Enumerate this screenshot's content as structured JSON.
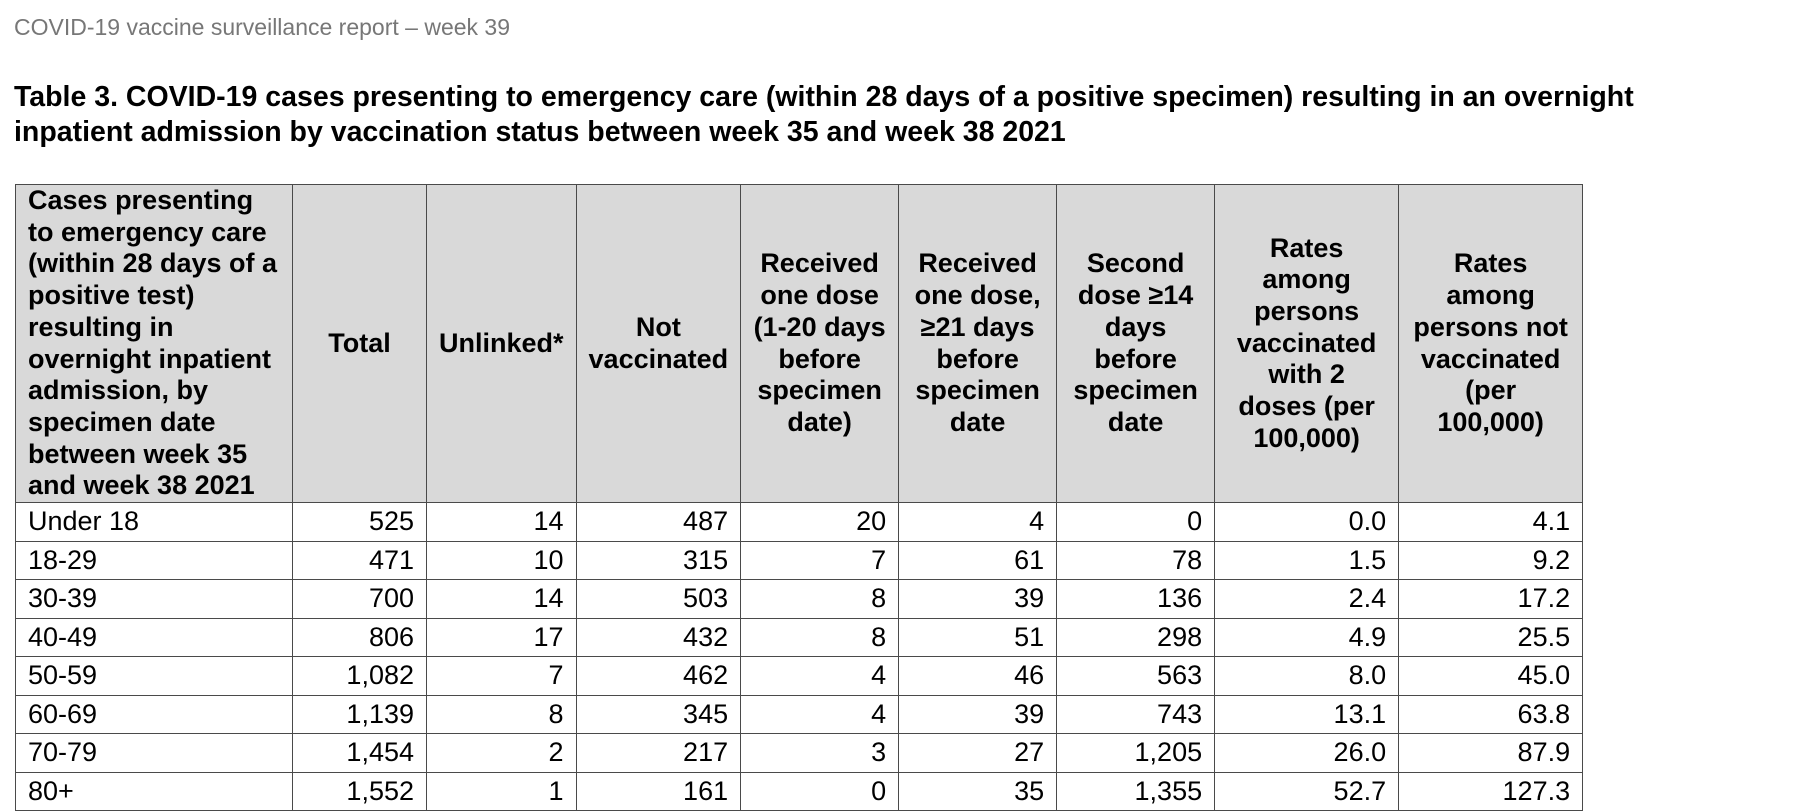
{
  "header": {
    "running_title": "COVID-19 vaccine surveillance report – week 39"
  },
  "table": {
    "title": "Table 3. COVID-19 cases presenting to emergency care (within 28 days of a positive specimen) resulting in an overnight inpatient admission by vaccination status between week 35 and week 38 2021",
    "columns": [
      "Cases presenting to emergency care (within 28 days of a positive test) resulting in overnight inpatient admission, by specimen date between week 35 and week 38 2021",
      "Total",
      "Unlinked*",
      "Not vaccinated",
      "Received one dose (1-20 days before specimen date)",
      "Received one dose, ≥21 days before specimen date",
      "Second dose ≥14 days before specimen date",
      "Rates among persons vaccinated with 2 doses (per 100,000)",
      "Rates among persons not vaccinated (per 100,000)"
    ],
    "rows": [
      {
        "age": "Under 18",
        "total": "525",
        "unlinked": "14",
        "not_vaccinated": "487",
        "one_dose_1_20": "20",
        "one_dose_21": "4",
        "second_dose": "0",
        "rate_vaccinated": "0.0",
        "rate_not_vaccinated": "4.1"
      },
      {
        "age": "18-29",
        "total": "471",
        "unlinked": "10",
        "not_vaccinated": "315",
        "one_dose_1_20": "7",
        "one_dose_21": "61",
        "second_dose": "78",
        "rate_vaccinated": "1.5",
        "rate_not_vaccinated": "9.2"
      },
      {
        "age": "30-39",
        "total": "700",
        "unlinked": "14",
        "not_vaccinated": "503",
        "one_dose_1_20": "8",
        "one_dose_21": "39",
        "second_dose": "136",
        "rate_vaccinated": "2.4",
        "rate_not_vaccinated": "17.2"
      },
      {
        "age": "40-49",
        "total": "806",
        "unlinked": "17",
        "not_vaccinated": "432",
        "one_dose_1_20": "8",
        "one_dose_21": "51",
        "second_dose": "298",
        "rate_vaccinated": "4.9",
        "rate_not_vaccinated": "25.5"
      },
      {
        "age": "50-59",
        "total": "1,082",
        "unlinked": "7",
        "not_vaccinated": "462",
        "one_dose_1_20": "4",
        "one_dose_21": "46",
        "second_dose": "563",
        "rate_vaccinated": "8.0",
        "rate_not_vaccinated": "45.0"
      },
      {
        "age": "60-69",
        "total": "1,139",
        "unlinked": "8",
        "not_vaccinated": "345",
        "one_dose_1_20": "4",
        "one_dose_21": "39",
        "second_dose": "743",
        "rate_vaccinated": "13.1",
        "rate_not_vaccinated": "63.8"
      },
      {
        "age": "70-79",
        "total": "1,454",
        "unlinked": "2",
        "not_vaccinated": "217",
        "one_dose_1_20": "3",
        "one_dose_21": "27",
        "second_dose": "1,205",
        "rate_vaccinated": "26.0",
        "rate_not_vaccinated": "87.9"
      },
      {
        "age": "80+",
        "total": "1,552",
        "unlinked": "1",
        "not_vaccinated": "161",
        "one_dose_1_20": "0",
        "one_dose_21": "35",
        "second_dose": "1,355",
        "rate_vaccinated": "52.7",
        "rate_not_vaccinated": "127.3"
      }
    ]
  }
}
